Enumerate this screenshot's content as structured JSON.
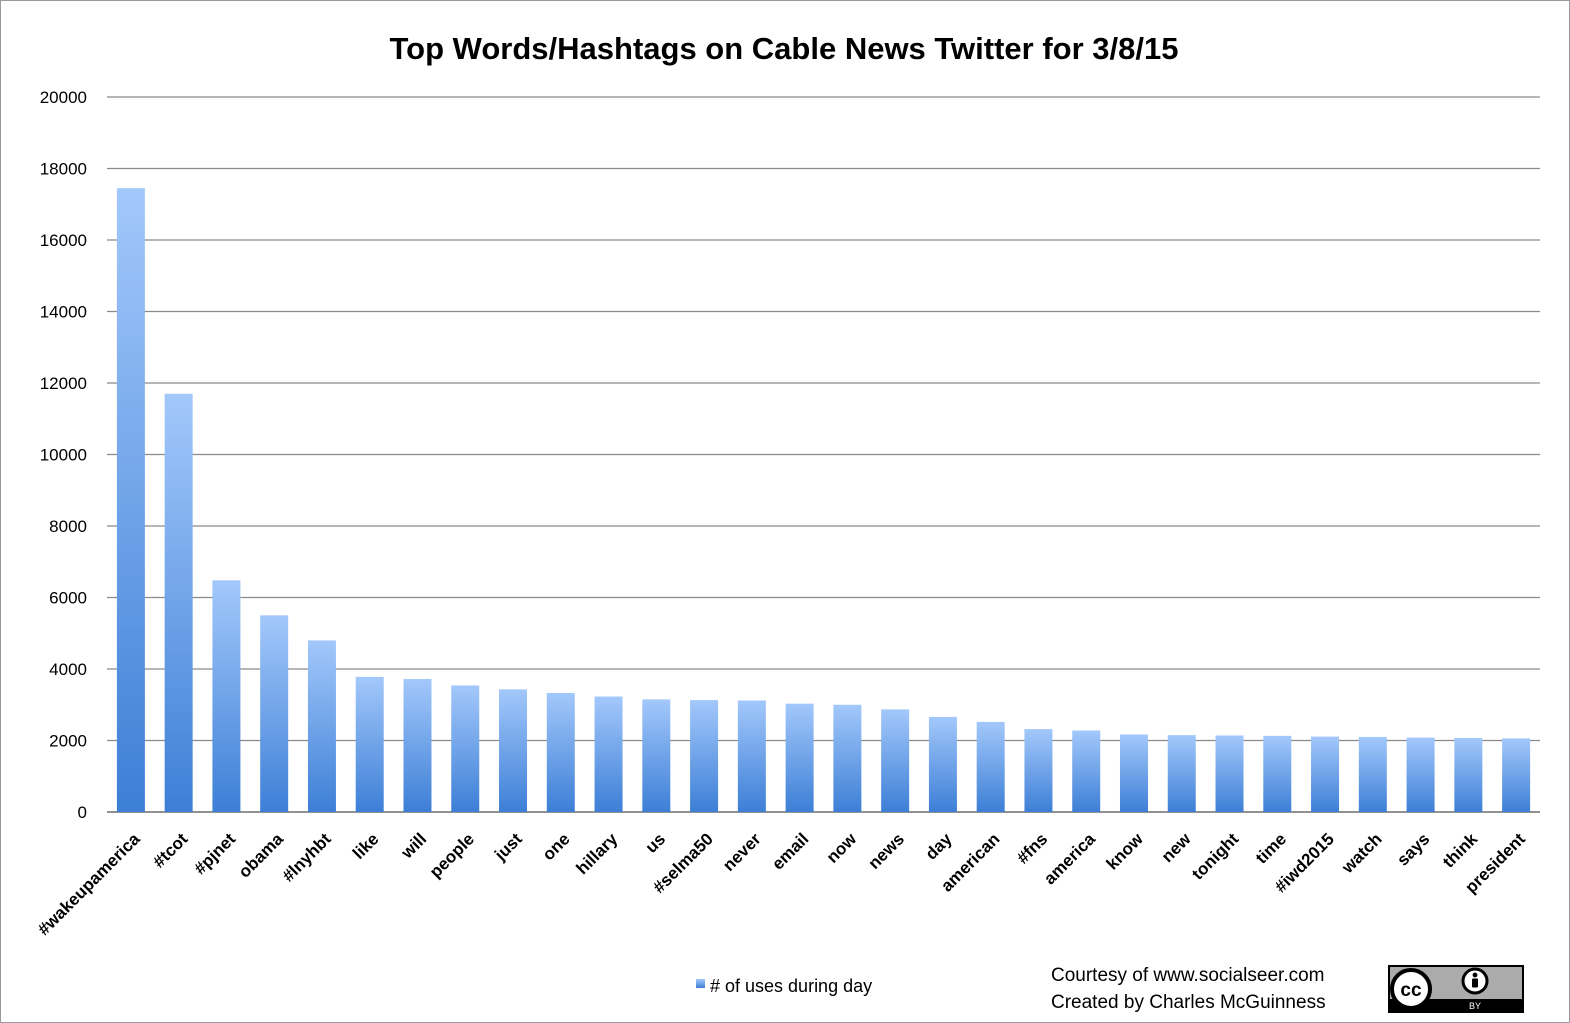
{
  "chart_data": {
    "type": "bar",
    "title": "Top Words/Hashtags on Cable News Twitter for 3/8/15",
    "xlabel": "",
    "ylabel": "",
    "ylim": [
      0,
      20000
    ],
    "yticks": [
      "0",
      "2000",
      "4000",
      "6000",
      "8000",
      "10000",
      "12000",
      "14000",
      "16000",
      "18000",
      "20000"
    ],
    "grid": true,
    "legend_position": "bottom",
    "categories": [
      "#wakeupamerica",
      "#tcot",
      "#pjnet",
      "obama",
      "#lnyhbt",
      "like",
      "will",
      "people",
      "just",
      "one",
      "hillary",
      "us",
      "#selma50",
      "never",
      "email",
      "now",
      "news",
      "day",
      "american",
      "#fns",
      "america",
      "know",
      "new",
      "tonight",
      "time",
      "#iwd2015",
      "watch",
      "says",
      "think",
      "president"
    ],
    "series": [
      {
        "name": "# of uses during day",
        "values": [
          17450,
          11700,
          6480,
          5500,
          4800,
          3780,
          3720,
          3540,
          3430,
          3330,
          3230,
          3150,
          3130,
          3120,
          3030,
          3000,
          2870,
          2660,
          2520,
          2320,
          2280,
          2170,
          2150,
          2140,
          2130,
          2110,
          2100,
          2080,
          2070,
          2060
        ]
      }
    ],
    "bar_color_top": "#a3c8fb",
    "bar_color_bottom": "#3d7fd6"
  },
  "footer": {
    "credit_line1": "Courtesy of www.socialseer.com",
    "credit_line2": "Created by Charles McGuinness",
    "license_badge": {
      "icon": "cc-by-icon",
      "cc_text": "cc",
      "by_text": "BY"
    }
  }
}
